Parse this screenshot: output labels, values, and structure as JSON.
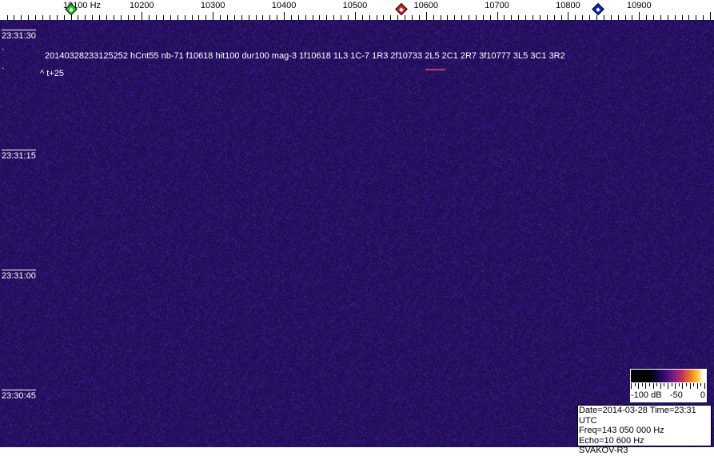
{
  "frequency_axis": {
    "labels": [
      "10100 Hz",
      "10200",
      "10300",
      "10400",
      "10500",
      "10600",
      "10700",
      "10800",
      "10900"
    ],
    "values_hz": [
      10100,
      10200,
      10300,
      10400,
      10500,
      10600,
      10700,
      10800,
      10900
    ],
    "markers": [
      {
        "name": "green-marker",
        "freq_hz": 10100,
        "color": "#22cc22"
      },
      {
        "name": "red-marker",
        "freq_hz": 10565,
        "color": "#dd2222"
      },
      {
        "name": "blue-marker",
        "freq_hz": 10842,
        "color": "#1122cc"
      }
    ]
  },
  "time_labels": [
    "23:31:30",
    "23:31:15",
    "23:31:00",
    "23:30:45"
  ],
  "annotation": {
    "detection": "20140328233125252 hCnt55 nb-71 f10618 hit100 dur100 mag-3 1f10618 1L3 1C-7 1R3 2f10733 2L5 2C1 2R7 3f10777 3L5 3C1 3R2",
    "offset": "^ t+25"
  },
  "colorbar": {
    "min_label": "-100 dB",
    "mid_label": "-50",
    "max_label": "0"
  },
  "info_box": {
    "date_time": "Date=2014-03-28 Time=23:31 UTC",
    "freq": "Freq=143 050 000 Hz",
    "echo": "Echo=10 600 Hz",
    "station": "SVAKOV-R3"
  },
  "colors": {
    "background": "#2a1a7a",
    "noise_accent": "#5a2a8a"
  }
}
